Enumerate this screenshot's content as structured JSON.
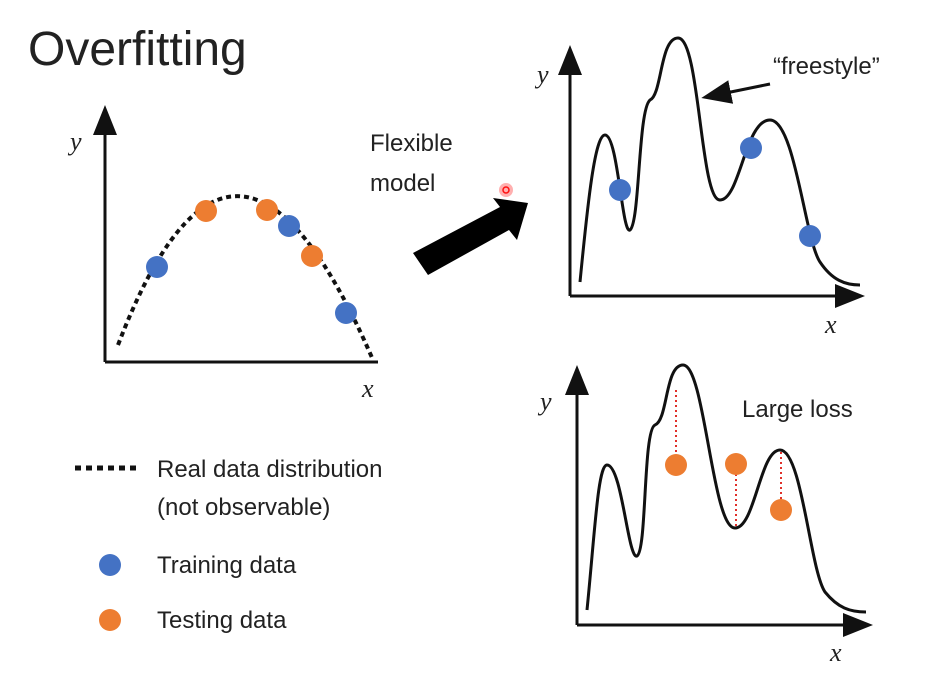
{
  "title": "Overfitting",
  "left_plot": {
    "y_label": "y",
    "x_label": "x"
  },
  "arrow_label": [
    "Flexible",
    "model"
  ],
  "top_right_plot": {
    "y_label": "y",
    "x_label": "x",
    "annotation": "“freestyle”"
  },
  "bottom_right_plot": {
    "y_label": "y",
    "x_label": "x",
    "annotation": "Large loss"
  },
  "legend": {
    "real": [
      "Real data distribution",
      "(not observable)"
    ],
    "training": "Training data",
    "testing": "Testing data"
  },
  "colors": {
    "training": "#4472C4",
    "testing": "#ED7D31",
    "loss_line": "#E0302A",
    "laser": "#FF2020"
  }
}
